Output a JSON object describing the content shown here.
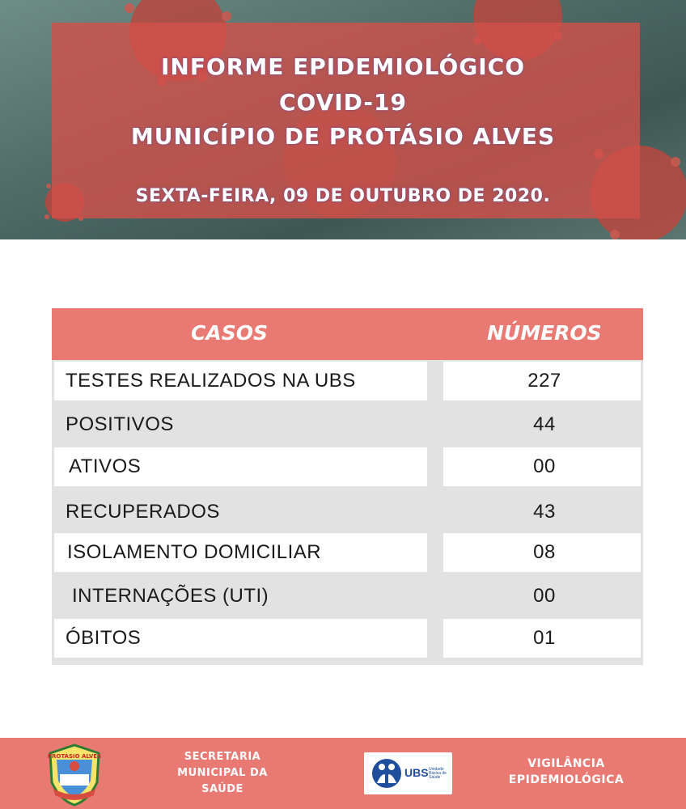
{
  "header": {
    "title_line1": "INFORME EPIDEMIOLÓGICO",
    "title_line2": "COVID-19",
    "title_line3": "MUNICÍPIO DE PROTÁSIO ALVES",
    "date": "SEXTA-FEIRA, 09 DE OUTUBRO DE 2020."
  },
  "table": {
    "col_cases": "CASOS",
    "col_numbers": "NÚMEROS",
    "rows": [
      {
        "label": "TESTES REALIZADOS NA UBS",
        "value": "227"
      },
      {
        "label": "POSITIVOS",
        "value": "44"
      },
      {
        "label": "ATIVOS",
        "value": "00"
      },
      {
        "label": "RECUPERADOS",
        "value": "43"
      },
      {
        "label": "ISOLAMENTO DOMICILIAR",
        "value": "08"
      },
      {
        "label": "INTERNAÇÕES (UTI)",
        "value": "00"
      },
      {
        "label": "ÓBITOS",
        "value": "01"
      }
    ]
  },
  "footer": {
    "secretaria_line1": "SECRETARIA",
    "secretaria_line2": "MUNICIPAL DA",
    "secretaria_line3": "SAÚDE",
    "crest_text": "PROTÁSIO ALVES",
    "ubs_logo": "UBS",
    "ubs_sub": "Unidade Básica de Saúde",
    "vigilancia_line1": "VIGILÂNCIA",
    "vigilancia_line2": "EPIDEMIOLÓGICA"
  },
  "colors": {
    "accent": "#e97a73",
    "banner_overlay": "#d2504a",
    "row_gray": "#e2e2e2"
  }
}
